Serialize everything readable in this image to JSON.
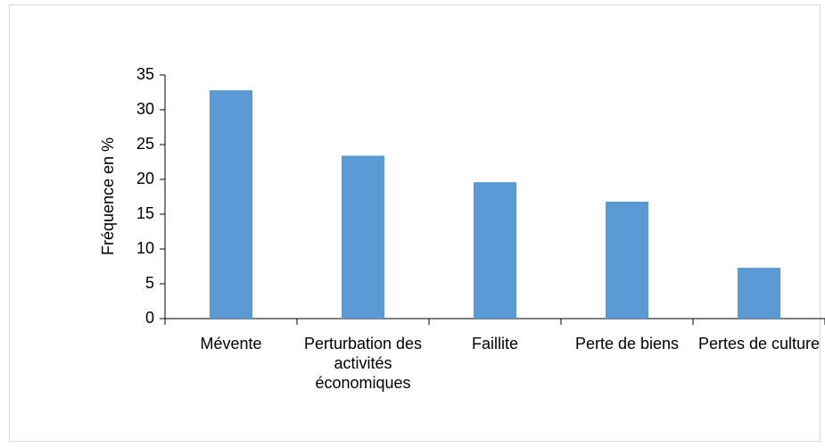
{
  "chart_data": {
    "type": "bar",
    "y_label": "Fréquence en %",
    "categories": [
      "Mévente",
      "Perturbation des activités économiques",
      "Faillite",
      "Perte de biens",
      "Pertes de culture"
    ],
    "values": [
      32.8,
      23.4,
      19.6,
      16.8,
      7.3
    ],
    "color": "#5b9bd5",
    "ylim": [
      0,
      35
    ],
    "yticks": [
      0,
      5,
      10,
      15,
      20,
      25,
      30,
      35
    ],
    "grid": false
  }
}
